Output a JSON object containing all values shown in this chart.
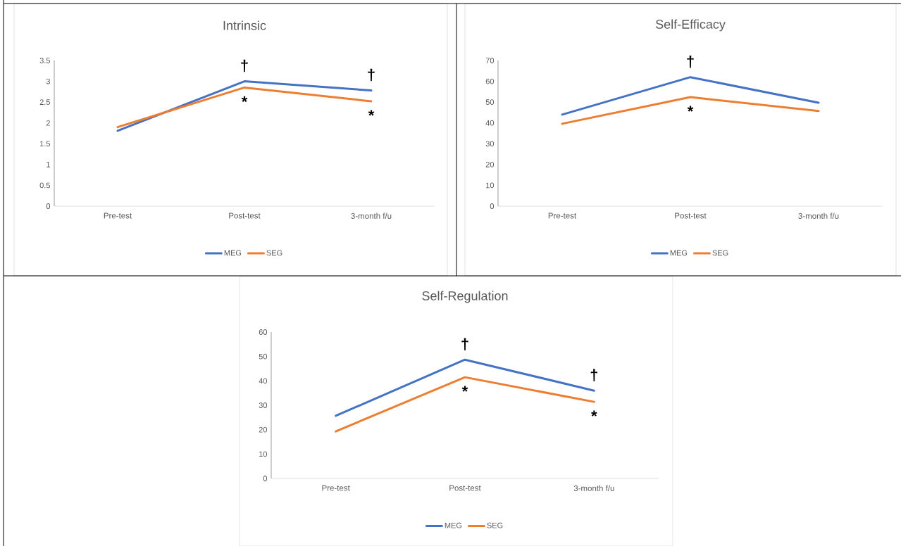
{
  "chart_data": [
    {
      "type": "line",
      "title": "Intrinsic",
      "categories": [
        "Pre-test",
        "Post-test",
        "3-month f/u"
      ],
      "series": [
        {
          "name": "MEG",
          "color": "#4472c4",
          "values": [
            1.81,
            3.0,
            2.78
          ]
        },
        {
          "name": "SEG",
          "color": "#ed7d31",
          "values": [
            1.9,
            2.85,
            2.52
          ]
        }
      ],
      "ylim": [
        0,
        3.5
      ],
      "yticks": [
        0,
        0.5,
        1,
        1.5,
        2,
        2.5,
        3,
        3.5
      ],
      "grid": false,
      "legend": "bottom",
      "annotations": [
        "†",
        "†",
        "*",
        "*"
      ]
    },
    {
      "type": "line",
      "title": "Self-Efficacy",
      "categories": [
        "Pre-test",
        "Post-test",
        "3-month f/u"
      ],
      "series": [
        {
          "name": "MEG",
          "color": "#4472c4",
          "values": [
            44,
            62,
            49.7
          ]
        },
        {
          "name": "SEG",
          "color": "#ed7d31",
          "values": [
            39.6,
            52.4,
            45.7
          ]
        }
      ],
      "ylim": [
        0,
        70
      ],
      "yticks": [
        0,
        10,
        20,
        30,
        40,
        50,
        60,
        70
      ],
      "grid": false,
      "legend": "bottom",
      "annotations": [
        "†",
        "*"
      ]
    },
    {
      "type": "line",
      "title": "Self-Regulation",
      "categories": [
        "Pre-test",
        "Post-test",
        "3-month f/u"
      ],
      "series": [
        {
          "name": "MEG",
          "color": "#4472c4",
          "values": [
            25.7,
            48.7,
            36
          ]
        },
        {
          "name": "SEG",
          "color": "#ed7d31",
          "values": [
            19.3,
            41.5,
            31.4
          ]
        }
      ],
      "ylim": [
        0,
        60
      ],
      "yticks": [
        0,
        10,
        20,
        30,
        40,
        50,
        60
      ],
      "grid": false,
      "legend": "bottom",
      "annotations": [
        "†",
        "†",
        "*",
        "*"
      ]
    }
  ]
}
